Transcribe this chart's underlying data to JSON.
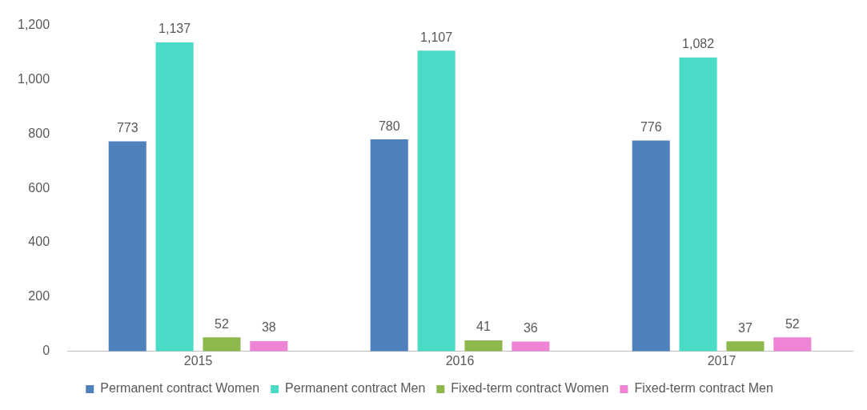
{
  "chart_data": {
    "type": "bar",
    "categories": [
      "2015",
      "2016",
      "2017"
    ],
    "series": [
      {
        "name": "Permanent contract Women",
        "color": "#4f81bd",
        "values": [
          773,
          780,
          776
        ],
        "value_labels": [
          "773",
          "780",
          "776"
        ]
      },
      {
        "name": "Permanent contract Men",
        "color": "#4adbc6",
        "values": [
          1137,
          1107,
          1082
        ],
        "value_labels": [
          "1,137",
          "1,107",
          "1,082"
        ]
      },
      {
        "name": "Fixed-term contract Women",
        "color": "#8cb84c",
        "values": [
          52,
          41,
          37
        ],
        "value_labels": [
          "52",
          "41",
          "37"
        ]
      },
      {
        "name": "Fixed-term contract Men",
        "color": "#ee84d6",
        "values": [
          38,
          36,
          52
        ],
        "value_labels": [
          "38",
          "36",
          "52"
        ]
      }
    ],
    "ylim": [
      0,
      1200
    ],
    "yticks": [
      0,
      200,
      400,
      600,
      800,
      {
        "value": 1000,
        "label": "1,000"
      },
      {
        "value": 1200,
        "label": "1,200"
      }
    ],
    "grid": false,
    "legend": "bottom"
  }
}
